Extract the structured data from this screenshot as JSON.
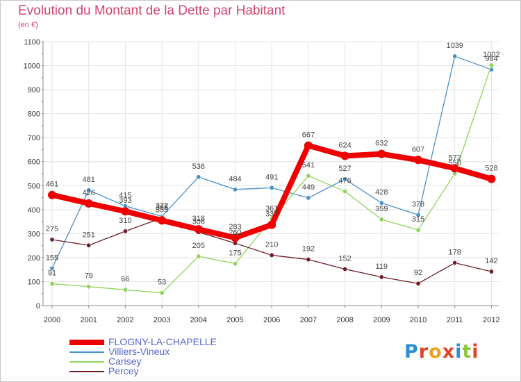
{
  "title": "Evolution du Montant de la Dette par Habitant",
  "subtitle": "(en €)",
  "logo": {
    "letters": [
      "P",
      "r",
      "o",
      "x",
      "i",
      "t",
      "i"
    ],
    "colors": [
      "#2a8fd4",
      "#e0442a",
      "#f0a020",
      "#e0442a",
      "#2a8fd4",
      "#8cc43c",
      "#e0442a"
    ]
  },
  "chart_data": {
    "type": "line",
    "categories": [
      "2000",
      "2001",
      "2002",
      "2003",
      "2004",
      "2005",
      "2006",
      "2007",
      "2008",
      "2009",
      "2010",
      "2011",
      "2012"
    ],
    "ylim": [
      0,
      1100
    ],
    "yticks": [
      0,
      100,
      200,
      300,
      400,
      500,
      600,
      700,
      800,
      900,
      1000,
      1100
    ],
    "grid": true,
    "legend_position": "bottom-left",
    "series": [
      {
        "name": "FLOGNY-LA-CHAPELLE",
        "color": "#ee0000",
        "emphasis": true,
        "values": [
          461,
          426,
          393,
          355,
          318,
          283,
          337,
          667,
          624,
          632,
          607,
          572,
          528
        ],
        "labels": [
          "461",
          "426",
          "393",
          "355",
          "318",
          "283",
          "337",
          "667",
          "624",
          "632",
          "607",
          "572",
          "528"
        ]
      },
      {
        "name": "Villiers-Vineux",
        "color": "#4a90c8",
        "emphasis": false,
        "values": [
          155,
          481,
          415,
          372,
          536,
          484,
          491,
          449,
          527,
          428,
          378,
          1039,
          984
        ],
        "labels": [
          "155",
          "481",
          "415",
          "372",
          "536",
          "484",
          "491",
          "449",
          "527",
          "428",
          "378",
          "1039",
          "984"
        ]
      },
      {
        "name": "Carisey",
        "color": "#8fd45a",
        "emphasis": false,
        "values": [
          91,
          79,
          66,
          53,
          205,
          175,
          361,
          541,
          476,
          359,
          315,
          550,
          1002
        ],
        "labels": [
          "91",
          "79",
          "66",
          "53",
          "205",
          "175",
          "361",
          "541",
          "476",
          "359",
          "315",
          "550",
          "1002"
        ]
      },
      {
        "name": "Percey",
        "color": "#6e1c26",
        "emphasis": false,
        "values": [
          275,
          251,
          310,
          365,
          306,
          260,
          210,
          192,
          152,
          119,
          92,
          178,
          142
        ],
        "labels": [
          "275",
          "251",
          "310",
          "365",
          "306",
          "260",
          "210",
          "192",
          "152",
          "119",
          "92",
          "178",
          "142"
        ]
      }
    ]
  }
}
